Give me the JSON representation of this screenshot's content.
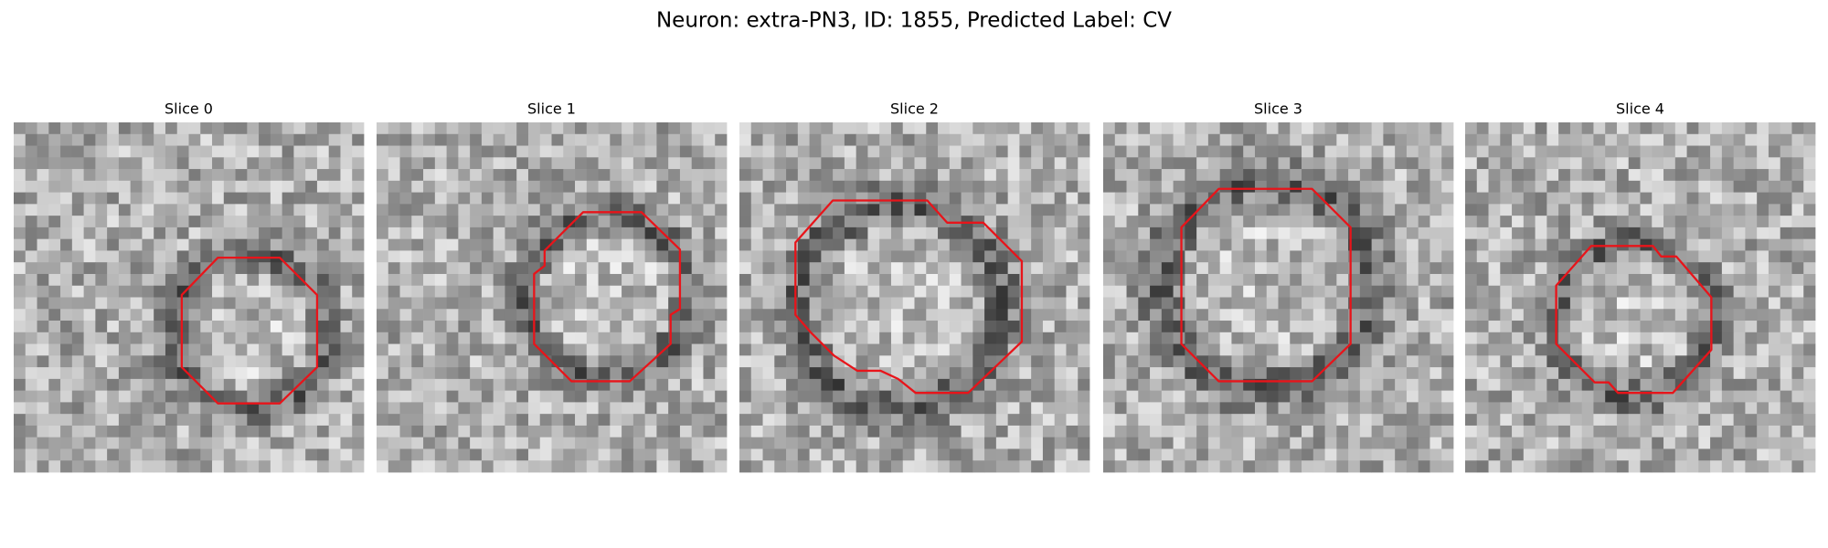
{
  "title": "Neuron: extra-PN3, ID: 1855, Predicted Label: CV",
  "panels": [
    {
      "title": "Slice 0"
    },
    {
      "title": "Slice 1"
    },
    {
      "title": "Slice 2"
    },
    {
      "title": "Slice 3"
    },
    {
      "title": "Slice 4"
    }
  ]
}
